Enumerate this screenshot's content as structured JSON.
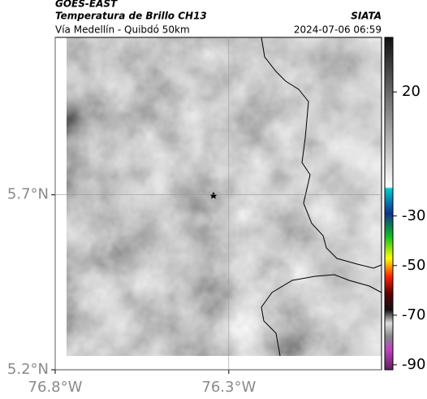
{
  "header": {
    "title": "GOES-EAST",
    "subtitle": "Temperatura de Brillo CH13",
    "source": "SIATA",
    "location": "Vía Medellín - Quibdó 50km",
    "datetime": "2024-07-06 06:59"
  },
  "map": {
    "xlim": [
      -76.8,
      -75.86
    ],
    "ylim": [
      5.2,
      6.15
    ],
    "xticks": [
      {
        "value": -76.8,
        "label": "76.8°W"
      },
      {
        "value": -76.3,
        "label": "76.3°W"
      }
    ],
    "yticks": [
      {
        "value": 5.2,
        "label": "5.2°N"
      },
      {
        "value": 5.7,
        "label": "5.7°N"
      }
    ],
    "grid": true
  },
  "colorbar": {
    "lim": [
      42,
      -92
    ],
    "ticks": [
      20,
      -30,
      -50,
      -70,
      -90
    ]
  }
}
